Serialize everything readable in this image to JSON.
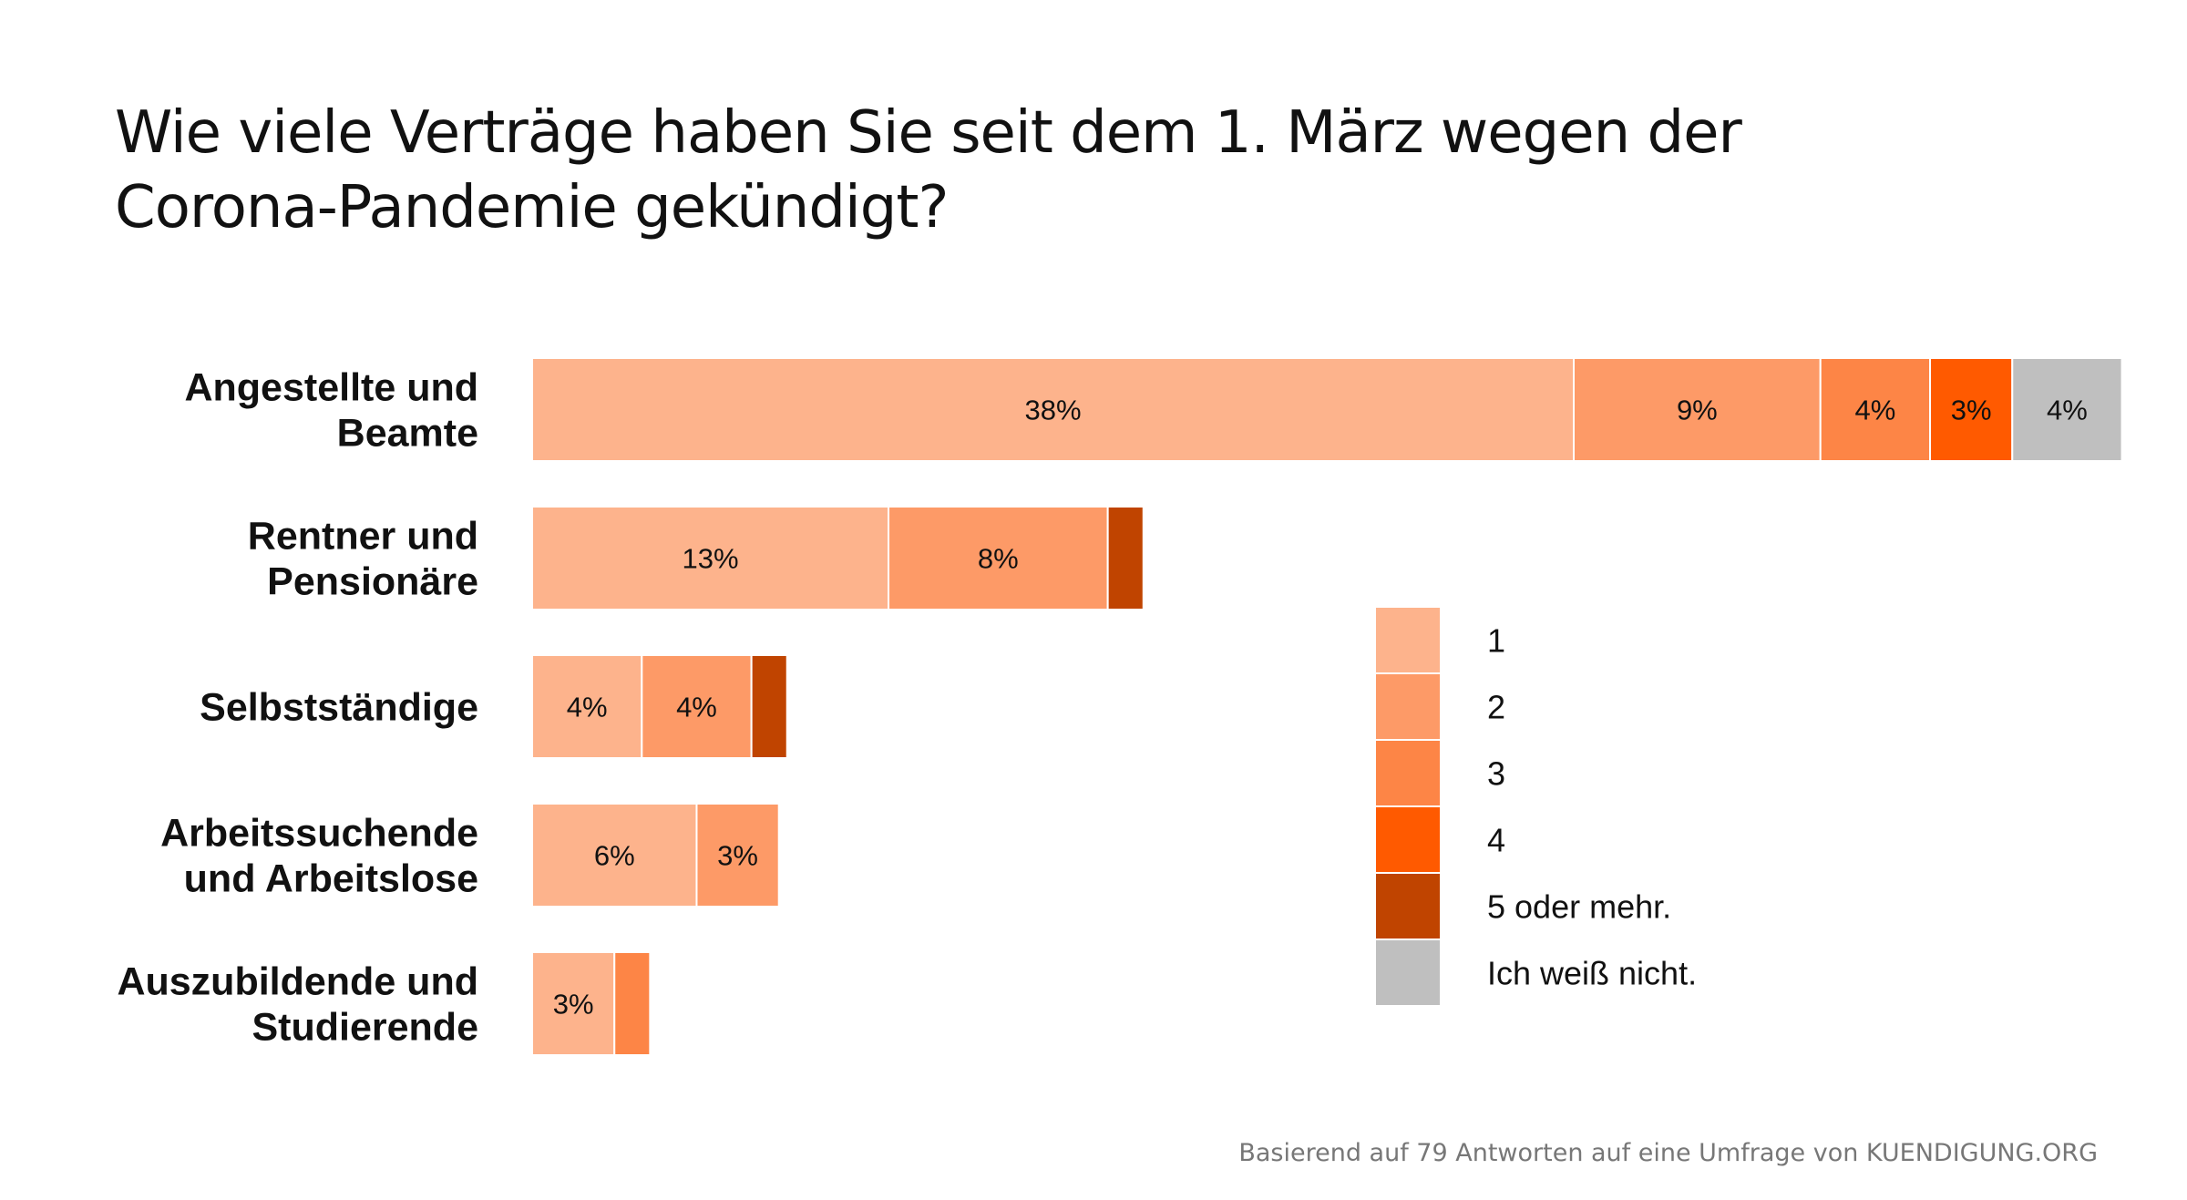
{
  "title_lines": [
    "Wie viele Verträge haben Sie seit dem 1. März wegen der",
    "Corona-Pandemie gekündigt?"
  ],
  "source": "Basierend auf 79 Antworten auf eine Umfrage von KUENDIGUNG.ORG",
  "chart_data": {
    "type": "bar",
    "orientation": "horizontal",
    "stacked": true,
    "unit": "%",
    "categories": [
      [
        "Angestellte und",
        "Beamte"
      ],
      [
        "Rentner und",
        "Pensionäre"
      ],
      [
        "Selbstständige"
      ],
      [
        "Arbeitssuchende",
        "und Arbeitslose"
      ],
      [
        "Auszubildende und",
        "Studierende"
      ]
    ],
    "series": [
      {
        "name": "1",
        "color": "#FDB38C",
        "values": [
          38,
          13,
          4,
          6,
          3
        ],
        "labels": [
          "38%",
          "13%",
          "4%",
          "6%",
          "3%"
        ]
      },
      {
        "name": "2",
        "color": "#FD9A67",
        "values": [
          9,
          8,
          4,
          3,
          0
        ],
        "labels": [
          "9%",
          "8%",
          "4%",
          "3%",
          ""
        ]
      },
      {
        "name": "3",
        "color": "#FD8546",
        "values": [
          4,
          0,
          0,
          0,
          1.3
        ],
        "labels": [
          "4%",
          "",
          "",
          "",
          ""
        ]
      },
      {
        "name": "4",
        "color": "#FF5A00",
        "values": [
          3,
          0,
          0,
          0,
          0
        ],
        "labels": [
          "3%",
          "",
          "",
          "",
          ""
        ]
      },
      {
        "name": "5 oder mehr.",
        "color": "#C04400",
        "values": [
          0,
          1.3,
          1.3,
          0,
          0
        ],
        "labels": [
          "",
          "",
          "",
          "",
          ""
        ]
      },
      {
        "name": "Ich weiß nicht.",
        "color": "#BFBFBF",
        "values": [
          4,
          0,
          0,
          0,
          0
        ],
        "labels": [
          "4%",
          "",
          "",
          "",
          ""
        ]
      }
    ],
    "xlim": [
      0,
      58
    ],
    "grid": false,
    "legend_position": "right-center"
  }
}
